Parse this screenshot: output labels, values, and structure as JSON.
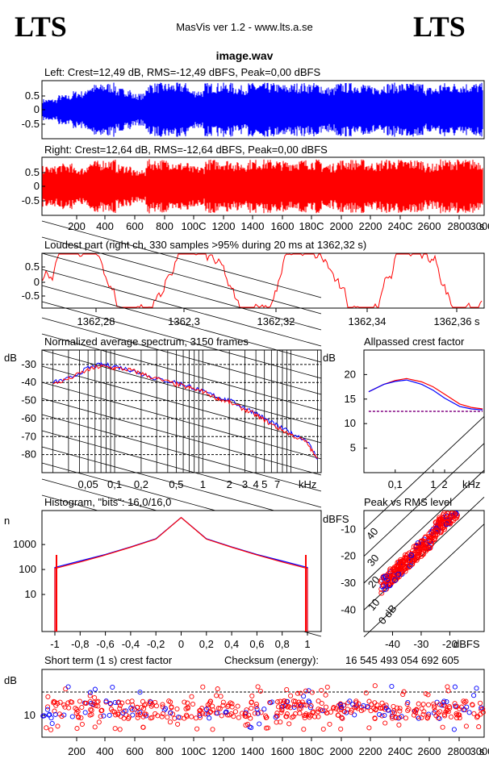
{
  "header": {
    "logo_left": "LTS",
    "logo_right": "LTS",
    "app_title": "MasVis ver 1.2 - www.lts.a.se",
    "file_name": "image.wav",
    "checksum_label": "Checksum (energy):",
    "checksum_value": "16 545 493 054 692 605"
  },
  "colors": {
    "left": "#0000ff",
    "right": "#ff0000",
    "purple": "#800080"
  },
  "chart_data": [
    {
      "id": "left-waveform",
      "type": "area",
      "title": "Left: Crest=12,49 dB, RMS=-12,49 dBFS, Peak=0,00 dBFS",
      "yticks": [
        "0.5",
        "0",
        "-0.5"
      ],
      "ylim": [
        -1,
        1
      ],
      "xlim": [
        0,
        3100
      ],
      "envelope": [
        0.4,
        0.55,
        0.7,
        0.95,
        1,
        0.8,
        0.6,
        1,
        1,
        1,
        0.75,
        1,
        1,
        0.9,
        1,
        1,
        0.95,
        1,
        1,
        0.85,
        1,
        1,
        0.9,
        1,
        1,
        1,
        0.85,
        1,
        1,
        1
      ]
    },
    {
      "id": "right-waveform",
      "type": "area",
      "title": "Right: Crest=12,64 dB, RMS=-12,64 dBFS, Peak=0,00 dBFS",
      "yticks": [
        "0.5",
        "0",
        "-0.5"
      ],
      "ylim": [
        -1,
        1
      ],
      "xlim": [
        0,
        3100
      ],
      "xticks": [
        "200",
        "400",
        "600",
        "800",
        "100C",
        "1200",
        "1400",
        "1600",
        "180C",
        "2000",
        "2200",
        "240C",
        "2600",
        "2800",
        "3000",
        "s"
      ],
      "envelope": [
        0.75,
        0.85,
        0.7,
        0.95,
        1,
        0.8,
        0.6,
        1,
        1,
        0.9,
        0.75,
        1,
        1,
        0.9,
        1,
        1,
        0.95,
        1,
        1,
        0.85,
        1,
        1,
        0.9,
        1,
        1,
        1,
        0.85,
        1,
        1,
        1
      ]
    },
    {
      "id": "loudest-part",
      "type": "line",
      "title": "Loudest part (right ch, 330 samples >95% during 20 ms at 1362,32 s)",
      "yticks": [
        "0.5",
        "0",
        "-0.5"
      ],
      "ylim": [
        -1,
        1
      ],
      "xlim": [
        1362.27,
        1362.37
      ],
      "xticks": [
        "1362,28",
        "1362,3",
        "1362,32",
        "1362,34",
        "1362,36 s"
      ]
    },
    {
      "id": "avg-spectrum",
      "type": "line",
      "title": "Normalized average spectrum, 3150 frames",
      "ylabel": "dB",
      "yticks": [
        "-30",
        "-40",
        "-50",
        "-60",
        "-70",
        "-80"
      ],
      "xticks": [
        "0,05",
        "0,1",
        "0,2",
        "0,5",
        "1",
        "2",
        "3",
        "4",
        "5",
        "7"
      ],
      "xunit": "kHz",
      "x_khz": [
        0.02,
        0.03,
        0.05,
        0.07,
        0.1,
        0.15,
        0.2,
        0.3,
        0.5,
        0.7,
        1,
        1.5,
        2,
        3,
        4,
        5,
        7,
        10,
        15,
        20
      ],
      "series": [
        {
          "values": [
            -40,
            -38,
            -32,
            -30,
            -31,
            -33,
            -35,
            -38,
            -40,
            -42,
            -45,
            -48,
            -50,
            -54,
            -57,
            -60,
            -64,
            -68,
            -72,
            -82
          ]
        },
        {
          "values": [
            -41,
            -38,
            -33,
            -31,
            -32,
            -33,
            -35,
            -38,
            -41,
            -43,
            -45,
            -49,
            -51,
            -55,
            -58,
            -61,
            -65,
            -69,
            -73,
            -83
          ]
        }
      ]
    },
    {
      "id": "allpassed-crest",
      "type": "line",
      "title": "Allpassed crest factor",
      "ylabel": "dB",
      "yticks": [
        "20",
        "15",
        "10",
        "5"
      ],
      "xticks": [
        "0,1",
        "1",
        "2"
      ],
      "xunit": "kHz",
      "x_khz": [
        0.02,
        0.05,
        0.1,
        0.2,
        0.5,
        1,
        2,
        5,
        10,
        20
      ],
      "series": [
        {
          "values": [
            16.5,
            18,
            18.8,
            19.2,
            18.5,
            17.5,
            16,
            14,
            13.3,
            13
          ]
        },
        {
          "values": [
            16.5,
            18,
            18.6,
            18.9,
            18,
            16.8,
            15.2,
            13.5,
            13,
            12.8
          ]
        },
        {
          "values": [
            12.5,
            12.5,
            12.5,
            12.5,
            12.5,
            12.5,
            12.5,
            12.5,
            12.5,
            12.5
          ]
        }
      ]
    },
    {
      "id": "histogram",
      "type": "line",
      "title": "Histogram, \"bits\": 16,0/16,0",
      "ylabel": "n",
      "yticks": [
        "1000",
        "100",
        "10"
      ],
      "xticks": [
        "-1",
        "-0,8",
        "-0,6",
        "-0,4",
        "-0,2",
        "0",
        "0,2",
        "0,4",
        "0,6",
        "0,8",
        "1"
      ],
      "x": [
        -1,
        -0.8,
        -0.6,
        -0.4,
        -0.2,
        0,
        0.2,
        0.4,
        0.6,
        0.8,
        1
      ],
      "series": [
        {
          "values": [
            120,
            220,
            400,
            800,
            1700,
            12000,
            1700,
            800,
            400,
            220,
            120
          ]
        },
        {
          "values": [
            110,
            200,
            380,
            780,
            1650,
            12000,
            1650,
            780,
            380,
            200,
            110
          ]
        }
      ]
    },
    {
      "id": "peak-vs-rms",
      "type": "scatter",
      "title": "Peak vs RMS level",
      "ylabel": "dBFS",
      "xlabel": "dBFS",
      "yticks": [
        "-10",
        "-20",
        "-30",
        "-40"
      ],
      "xticks": [
        "-40",
        "-30",
        "-20"
      ],
      "diag_labels": [
        "40",
        "30",
        "20",
        "10",
        "0 dB"
      ],
      "xlim": [
        -50,
        -8
      ],
      "ylim": [
        -48,
        -3
      ]
    },
    {
      "id": "short-term-crest",
      "type": "scatter",
      "title": "Short term (1 s) crest factor",
      "ylabel": "dB",
      "yticks": [
        "10"
      ],
      "xticks": [
        "200",
        "400",
        "600",
        "800",
        "100C",
        "1200",
        "1400",
        "1600",
        "180C",
        "2000",
        "2200",
        "240C",
        "2600",
        "2800",
        "3000",
        "s"
      ],
      "xlim": [
        0,
        3100
      ]
    }
  ]
}
